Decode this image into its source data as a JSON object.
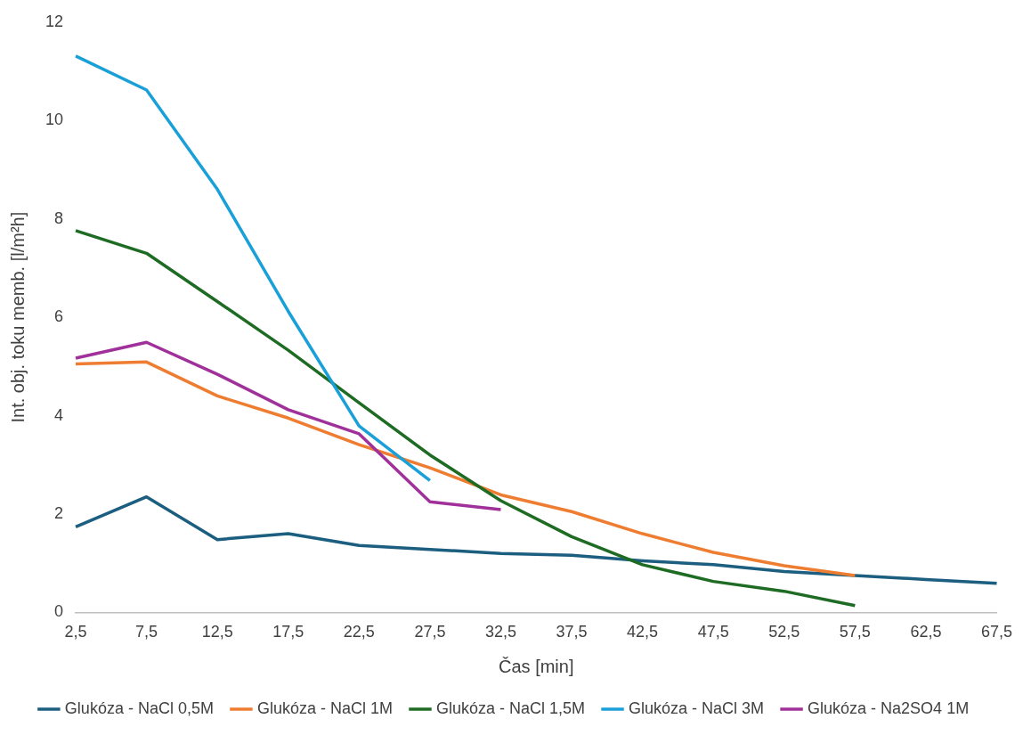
{
  "chart_data": {
    "type": "line",
    "xlabel": "Čas [min]",
    "ylabel": "Int. obj. toku memb. [l/m²h]",
    "categories": [
      "2,5",
      "7,5",
      "12,5",
      "17,5",
      "22,5",
      "27,5",
      "32,5",
      "37,5",
      "42,5",
      "47,5",
      "52,5",
      "57,5",
      "62,5",
      "67,5"
    ],
    "ylim": [
      0,
      12
    ],
    "yticks": [
      0,
      2,
      4,
      6,
      8,
      10,
      12
    ],
    "grid": false,
    "legend": "bottom",
    "marker": "none",
    "series": [
      {
        "name": "Glukóza - NaCl 0,5M",
        "color": "#1b5e80",
        "values": [
          1.74,
          2.35,
          1.48,
          1.6,
          1.36,
          1.28,
          1.2,
          1.16,
          1.05,
          0.97,
          0.83,
          0.75,
          0.67,
          0.59
        ]
      },
      {
        "name": "Glukóza - NaCl 1M",
        "color": "#ee7d31",
        "values": [
          5.05,
          5.09,
          4.4,
          3.95,
          3.41,
          2.94,
          2.39,
          2.05,
          1.6,
          1.22,
          0.95,
          0.75,
          null,
          null
        ]
      },
      {
        "name": "Glukóza - NaCl 1,5M",
        "color": "#1e6b24",
        "values": [
          7.76,
          7.3,
          6.32,
          5.33,
          4.26,
          3.2,
          2.27,
          1.54,
          0.97,
          0.63,
          0.43,
          0.14,
          null,
          null
        ]
      },
      {
        "name": "Glukóza - NaCl 3M",
        "color": "#1aa0d8",
        "values": [
          11.31,
          10.62,
          8.6,
          6.12,
          3.79,
          2.68,
          null,
          null,
          null,
          null,
          null,
          null,
          null,
          null
        ]
      },
      {
        "name": "Glukóza - Na2SO4 1M",
        "color": "#a0309a",
        "values": [
          5.17,
          5.49,
          4.84,
          4.12,
          3.63,
          2.25,
          2.09,
          null,
          null,
          null,
          null,
          null,
          null,
          null
        ]
      }
    ]
  }
}
